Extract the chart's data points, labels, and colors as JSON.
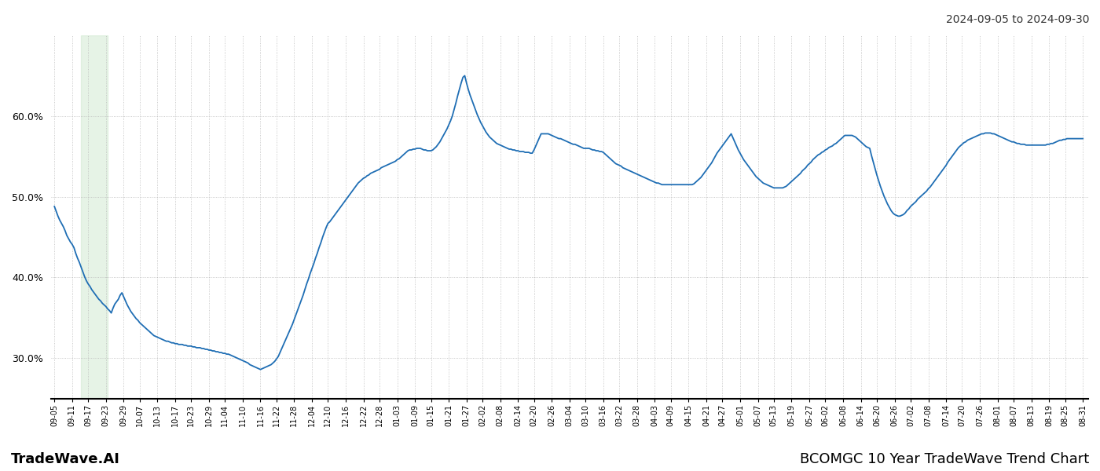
{
  "title_right": "2024-09-05 to 2024-09-30",
  "footer_left": "TradeWave.AI",
  "footer_right": "BCOMGC 10 Year TradeWave Trend Chart",
  "line_color": "#1f6eb4",
  "line_width": 1.3,
  "highlight_color": "#c8e6c9",
  "highlight_alpha": 0.45,
  "background_color": "#ffffff",
  "grid_color": "#bbbbbb",
  "grid_style": ":",
  "ylim": [
    0.25,
    0.7
  ],
  "yticks": [
    0.3,
    0.4,
    0.5,
    0.6
  ],
  "highlight_xstart": 15,
  "highlight_xend": 30,
  "x_tick_labels": [
    "09-05",
    "09-11",
    "09-17",
    "09-23",
    "09-29",
    "10-07",
    "10-13",
    "10-17",
    "10-23",
    "10-29",
    "11-04",
    "11-10",
    "11-16",
    "11-22",
    "11-28",
    "12-04",
    "12-10",
    "12-16",
    "12-22",
    "12-28",
    "01-03",
    "01-09",
    "01-15",
    "01-21",
    "01-27",
    "02-02",
    "02-08",
    "02-14",
    "02-20",
    "02-26",
    "03-04",
    "03-10",
    "03-16",
    "03-22",
    "03-28",
    "04-03",
    "04-09",
    "04-15",
    "04-21",
    "04-27",
    "05-01",
    "05-07",
    "05-13",
    "05-19",
    "05-27",
    "06-02",
    "06-08",
    "06-14",
    "06-20",
    "06-26",
    "07-02",
    "07-08",
    "07-14",
    "07-20",
    "07-26",
    "08-01",
    "08-07",
    "08-13",
    "08-19",
    "08-25",
    "08-31"
  ],
  "values": [
    0.488,
    0.482,
    0.476,
    0.471,
    0.467,
    0.463,
    0.458,
    0.452,
    0.448,
    0.444,
    0.441,
    0.437,
    0.43,
    0.424,
    0.419,
    0.413,
    0.407,
    0.401,
    0.396,
    0.392,
    0.389,
    0.385,
    0.382,
    0.379,
    0.376,
    0.373,
    0.371,
    0.368,
    0.366,
    0.364,
    0.361,
    0.359,
    0.356,
    0.362,
    0.367,
    0.37,
    0.373,
    0.378,
    0.381,
    0.376,
    0.371,
    0.366,
    0.362,
    0.358,
    0.355,
    0.352,
    0.349,
    0.347,
    0.344,
    0.342,
    0.34,
    0.338,
    0.336,
    0.334,
    0.332,
    0.33,
    0.328,
    0.327,
    0.326,
    0.325,
    0.324,
    0.323,
    0.322,
    0.321,
    0.321,
    0.32,
    0.319,
    0.319,
    0.318,
    0.318,
    0.317,
    0.317,
    0.317,
    0.316,
    0.316,
    0.315,
    0.315,
    0.315,
    0.314,
    0.314,
    0.313,
    0.313,
    0.313,
    0.312,
    0.312,
    0.311,
    0.311,
    0.31,
    0.31,
    0.309,
    0.309,
    0.308,
    0.308,
    0.307,
    0.307,
    0.306,
    0.306,
    0.305,
    0.305,
    0.304,
    0.303,
    0.302,
    0.301,
    0.3,
    0.299,
    0.298,
    0.297,
    0.296,
    0.295,
    0.294,
    0.292,
    0.291,
    0.29,
    0.289,
    0.288,
    0.287,
    0.286,
    0.287,
    0.288,
    0.289,
    0.29,
    0.291,
    0.292,
    0.294,
    0.296,
    0.299,
    0.302,
    0.307,
    0.312,
    0.317,
    0.322,
    0.327,
    0.332,
    0.337,
    0.342,
    0.348,
    0.354,
    0.36,
    0.366,
    0.372,
    0.378,
    0.385,
    0.392,
    0.398,
    0.405,
    0.411,
    0.417,
    0.424,
    0.43,
    0.437,
    0.443,
    0.45,
    0.456,
    0.462,
    0.467,
    0.469,
    0.472,
    0.475,
    0.478,
    0.481,
    0.484,
    0.487,
    0.49,
    0.493,
    0.496,
    0.499,
    0.502,
    0.505,
    0.508,
    0.511,
    0.514,
    0.517,
    0.519,
    0.521,
    0.523,
    0.524,
    0.526,
    0.527,
    0.529,
    0.53,
    0.531,
    0.532,
    0.533,
    0.534,
    0.536,
    0.537,
    0.538,
    0.539,
    0.54,
    0.541,
    0.542,
    0.543,
    0.544,
    0.546,
    0.547,
    0.549,
    0.551,
    0.553,
    0.555,
    0.557,
    0.558,
    0.558,
    0.559,
    0.559,
    0.56,
    0.56,
    0.56,
    0.559,
    0.558,
    0.558,
    0.557,
    0.557,
    0.557,
    0.558,
    0.56,
    0.562,
    0.565,
    0.568,
    0.572,
    0.576,
    0.58,
    0.584,
    0.589,
    0.594,
    0.6,
    0.608,
    0.616,
    0.625,
    0.633,
    0.641,
    0.648,
    0.65,
    0.641,
    0.633,
    0.626,
    0.62,
    0.614,
    0.608,
    0.602,
    0.597,
    0.592,
    0.588,
    0.584,
    0.58,
    0.577,
    0.574,
    0.572,
    0.57,
    0.568,
    0.566,
    0.565,
    0.564,
    0.563,
    0.562,
    0.561,
    0.56,
    0.559,
    0.559,
    0.558,
    0.558,
    0.557,
    0.557,
    0.556,
    0.556,
    0.556,
    0.555,
    0.555,
    0.555,
    0.554,
    0.554,
    0.558,
    0.563,
    0.568,
    0.573,
    0.578,
    0.578,
    0.578,
    0.578,
    0.578,
    0.577,
    0.576,
    0.575,
    0.574,
    0.573,
    0.572,
    0.572,
    0.571,
    0.57,
    0.569,
    0.568,
    0.567,
    0.566,
    0.565,
    0.565,
    0.564,
    0.563,
    0.562,
    0.561,
    0.56,
    0.56,
    0.56,
    0.56,
    0.559,
    0.558,
    0.558,
    0.557,
    0.557,
    0.556,
    0.556,
    0.555,
    0.553,
    0.551,
    0.549,
    0.547,
    0.545,
    0.543,
    0.541,
    0.54,
    0.539,
    0.538,
    0.536,
    0.535,
    0.534,
    0.533,
    0.532,
    0.531,
    0.53,
    0.529,
    0.528,
    0.527,
    0.526,
    0.525,
    0.524,
    0.523,
    0.522,
    0.521,
    0.52,
    0.519,
    0.518,
    0.517,
    0.517,
    0.516,
    0.515,
    0.515,
    0.515,
    0.515,
    0.515,
    0.515,
    0.515,
    0.515,
    0.515,
    0.515,
    0.515,
    0.515,
    0.515,
    0.515,
    0.515,
    0.515,
    0.515,
    0.515,
    0.516,
    0.518,
    0.52,
    0.522,
    0.524,
    0.527,
    0.53,
    0.533,
    0.536,
    0.539,
    0.542,
    0.546,
    0.55,
    0.554,
    0.557,
    0.56,
    0.563,
    0.566,
    0.569,
    0.572,
    0.575,
    0.578,
    0.573,
    0.568,
    0.563,
    0.558,
    0.554,
    0.55,
    0.546,
    0.543,
    0.54,
    0.537,
    0.534,
    0.531,
    0.528,
    0.525,
    0.523,
    0.521,
    0.519,
    0.517,
    0.516,
    0.515,
    0.514,
    0.513,
    0.512,
    0.511,
    0.511,
    0.511,
    0.511,
    0.511,
    0.511,
    0.512,
    0.513,
    0.515,
    0.517,
    0.519,
    0.521,
    0.523,
    0.525,
    0.527,
    0.529,
    0.532,
    0.534,
    0.536,
    0.539,
    0.541,
    0.543,
    0.546,
    0.548,
    0.55,
    0.552,
    0.553,
    0.555,
    0.556,
    0.558,
    0.559,
    0.561,
    0.562,
    0.563,
    0.565,
    0.566,
    0.568,
    0.57,
    0.572,
    0.574,
    0.576,
    0.576,
    0.576,
    0.576,
    0.576,
    0.575,
    0.574,
    0.572,
    0.57,
    0.568,
    0.566,
    0.564,
    0.562,
    0.561,
    0.56,
    0.551,
    0.543,
    0.535,
    0.527,
    0.52,
    0.513,
    0.507,
    0.501,
    0.496,
    0.491,
    0.487,
    0.483,
    0.48,
    0.478,
    0.477,
    0.476,
    0.476,
    0.477,
    0.478,
    0.48,
    0.483,
    0.485,
    0.488,
    0.49,
    0.492,
    0.494,
    0.497,
    0.499,
    0.501,
    0.503,
    0.505,
    0.507,
    0.51,
    0.512,
    0.515,
    0.518,
    0.521,
    0.524,
    0.527,
    0.53,
    0.533,
    0.536,
    0.539,
    0.543,
    0.546,
    0.549,
    0.552,
    0.555,
    0.558,
    0.561,
    0.563,
    0.565,
    0.567,
    0.568,
    0.57,
    0.571,
    0.572,
    0.573,
    0.574,
    0.575,
    0.576,
    0.577,
    0.578,
    0.578,
    0.579,
    0.579,
    0.579,
    0.579,
    0.578,
    0.578,
    0.577,
    0.576,
    0.575,
    0.574,
    0.573,
    0.572,
    0.571,
    0.57,
    0.569,
    0.568,
    0.568,
    0.567,
    0.566,
    0.566,
    0.565,
    0.565,
    0.565,
    0.564,
    0.564,
    0.564,
    0.564,
    0.564,
    0.564,
    0.564,
    0.564,
    0.564,
    0.564,
    0.564,
    0.564,
    0.565,
    0.565,
    0.566,
    0.566,
    0.567,
    0.568,
    0.569,
    0.57,
    0.57,
    0.571,
    0.571,
    0.572,
    0.572,
    0.572,
    0.572,
    0.572,
    0.572,
    0.572,
    0.572,
    0.572,
    0.572
  ]
}
